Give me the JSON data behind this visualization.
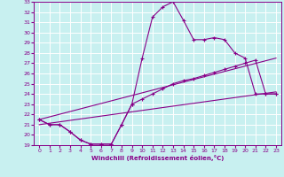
{
  "xlabel": "Windchill (Refroidissement éolien,°C)",
  "background_color": "#c8f0f0",
  "grid_color": "#ffffff",
  "line_color": "#880088",
  "xlim": [
    -0.5,
    23.5
  ],
  "ylim": [
    19,
    33
  ],
  "xticks": [
    0,
    1,
    2,
    3,
    4,
    5,
    6,
    7,
    8,
    9,
    10,
    11,
    12,
    13,
    14,
    15,
    16,
    17,
    18,
    19,
    20,
    21,
    22,
    23
  ],
  "yticks": [
    19,
    20,
    21,
    22,
    23,
    24,
    25,
    26,
    27,
    28,
    29,
    30,
    31,
    32,
    33
  ],
  "series1_x": [
    0,
    1,
    2,
    3,
    4,
    5,
    6,
    7,
    8,
    9,
    10,
    11,
    12,
    13,
    14,
    15,
    16,
    17,
    18,
    19,
    20,
    21,
    22,
    23
  ],
  "series1_y": [
    21.5,
    21.0,
    21.0,
    20.3,
    19.5,
    19.1,
    19.1,
    19.1,
    21.0,
    23.0,
    27.5,
    31.5,
    32.5,
    33.0,
    31.2,
    29.3,
    29.3,
    29.5,
    29.3,
    28.0,
    27.5,
    24.0,
    24.0,
    24.0
  ],
  "series2_x": [
    0,
    1,
    2,
    3,
    4,
    5,
    6,
    7,
    8,
    9,
    10,
    11,
    12,
    13,
    14,
    15,
    16,
    17,
    18,
    19,
    20,
    21,
    22,
    23
  ],
  "series2_y": [
    21.5,
    21.0,
    21.0,
    20.3,
    19.5,
    19.1,
    19.1,
    19.1,
    21.0,
    23.0,
    23.5,
    24.0,
    24.5,
    25.0,
    25.3,
    25.5,
    25.8,
    26.1,
    26.4,
    26.7,
    27.0,
    27.3,
    24.0,
    24.0
  ],
  "series3_x": [
    0,
    23
  ],
  "series3_y": [
    21.0,
    24.2
  ],
  "series4_x": [
    0,
    23
  ],
  "series4_y": [
    21.5,
    27.5
  ]
}
